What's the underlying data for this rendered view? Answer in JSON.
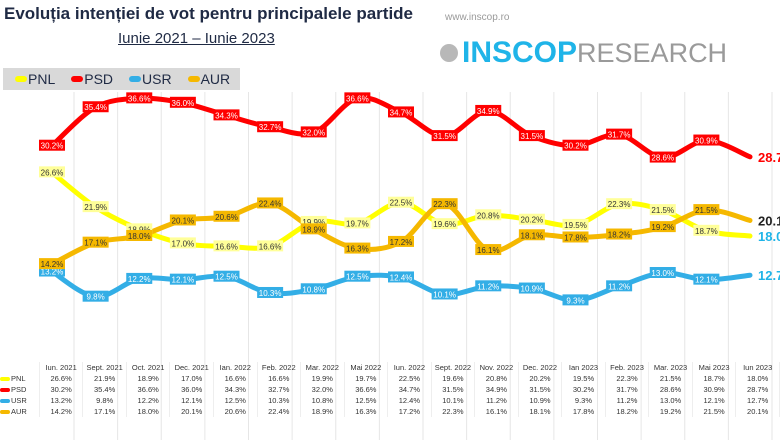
{
  "header": {
    "title": "Evoluția intenției de vot pentru principalele partide",
    "subtitle": "Iunie 2021 – Iunie 2023",
    "url": "www.inscop.ro",
    "logo": "INSCOP RESEARCH"
  },
  "chart_data": {
    "type": "line",
    "title": "Evoluția intenției de vot pentru principalele partide",
    "subtitle": "Iunie 2021 – Iunie 2023",
    "categories": [
      "Iun. 2021",
      "Sept. 2021",
      "Oct. 2021",
      "Dec. 2021",
      "Ian. 2022",
      "Feb. 2022",
      "Mar. 2022",
      "Mai 2022",
      "Iun. 2022",
      "Sept. 2022",
      "Nov. 2022",
      "Dec. 2022",
      "Ian 2023",
      "Feb. 2023",
      "Mar. 2023",
      "Mai 2023",
      "Iun 2023"
    ],
    "ylim": [
      8,
      38
    ],
    "grid": "vertical",
    "legend": "top-left",
    "series": [
      {
        "name": "PNL",
        "color": "#ffff00",
        "values": [
          26.6,
          21.9,
          18.9,
          17.0,
          16.6,
          16.6,
          19.9,
          19.7,
          22.5,
          19.6,
          20.8,
          20.2,
          19.5,
          22.3,
          21.5,
          18.7,
          18.0
        ]
      },
      {
        "name": "PSD",
        "color": "#ff0000",
        "values": [
          30.2,
          35.4,
          36.6,
          36.0,
          34.3,
          32.7,
          32.0,
          36.6,
          34.7,
          31.5,
          34.9,
          31.5,
          30.2,
          31.7,
          28.6,
          30.9,
          28.7
        ]
      },
      {
        "name": "USR",
        "color": "#33aee6",
        "values": [
          13.2,
          9.8,
          12.2,
          12.1,
          12.5,
          10.3,
          10.8,
          12.5,
          12.4,
          10.1,
          11.2,
          10.9,
          9.3,
          11.2,
          13.0,
          12.1,
          12.7
        ]
      },
      {
        "name": "AUR",
        "color": "#f5b800",
        "values": [
          14.2,
          17.1,
          18.0,
          20.1,
          20.6,
          22.4,
          18.9,
          16.3,
          17.2,
          22.3,
          16.1,
          18.1,
          17.8,
          18.2,
          19.2,
          21.5,
          20.1
        ]
      }
    ]
  }
}
